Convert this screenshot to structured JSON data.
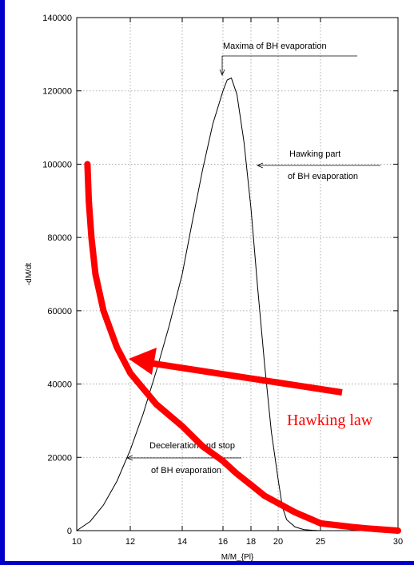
{
  "slide": {
    "background_color": "#0000c8"
  },
  "chart_data": {
    "type": "line",
    "xlabel": "M/M_{Pl}",
    "ylabel": "-dM/dt",
    "x_ticks": [
      "10",
      "12",
      "14",
      "16",
      "18",
      "20",
      "25",
      "30"
    ],
    "y_ticks": [
      "0",
      "20000",
      "40000",
      "60000",
      "80000",
      "100000",
      "120000",
      "140000"
    ],
    "ylim": [
      0,
      140000
    ],
    "grid": true,
    "series": [
      {
        "color": "#000000",
        "x": [
          10,
          10.5,
          11,
          11.5,
          12,
          12.5,
          13,
          13.5,
          14,
          14.5,
          15,
          15.5,
          16,
          16.3,
          16.6,
          17,
          17.5,
          18,
          18.5,
          19,
          19.5,
          20,
          20.5,
          21,
          22,
          23,
          24,
          25,
          26,
          27,
          28
        ],
        "y": [
          0,
          2500,
          7000,
          13500,
          22000,
          32000,
          43500,
          56000,
          70000,
          84500,
          98500,
          111000,
          120000,
          123000,
          123500,
          119000,
          106000,
          88000,
          66000,
          45500,
          27000,
          14000,
          6500,
          3000,
          1000,
          300,
          100,
          0,
          0,
          0,
          0
        ]
      },
      {
        "name": "Hawking law",
        "color": "#ff0000",
        "x": [
          10.4,
          10.45,
          10.55,
          10.7,
          11,
          11.5,
          12,
          13,
          14,
          15,
          16,
          17,
          18,
          19,
          20,
          22,
          24,
          25,
          26,
          27,
          28,
          29,
          30
        ],
        "y": [
          100000,
          90000,
          80000,
          70000,
          60000,
          50000,
          43000,
          34500,
          28500,
          23000,
          19000,
          15500,
          12500,
          9500,
          7500,
          5000,
          3000,
          2000,
          1500,
          1000,
          600,
          300,
          0
        ]
      }
    ],
    "annotations": [
      {
        "text": "Maxima of BH evaporation"
      },
      {
        "lines": [
          "Hawking part",
          "of BH evaporation"
        ]
      },
      {
        "lines": [
          "Deceleration and stop",
          "of BH evaporation"
        ]
      }
    ],
    "big_arrow_label": "Hawking law"
  }
}
